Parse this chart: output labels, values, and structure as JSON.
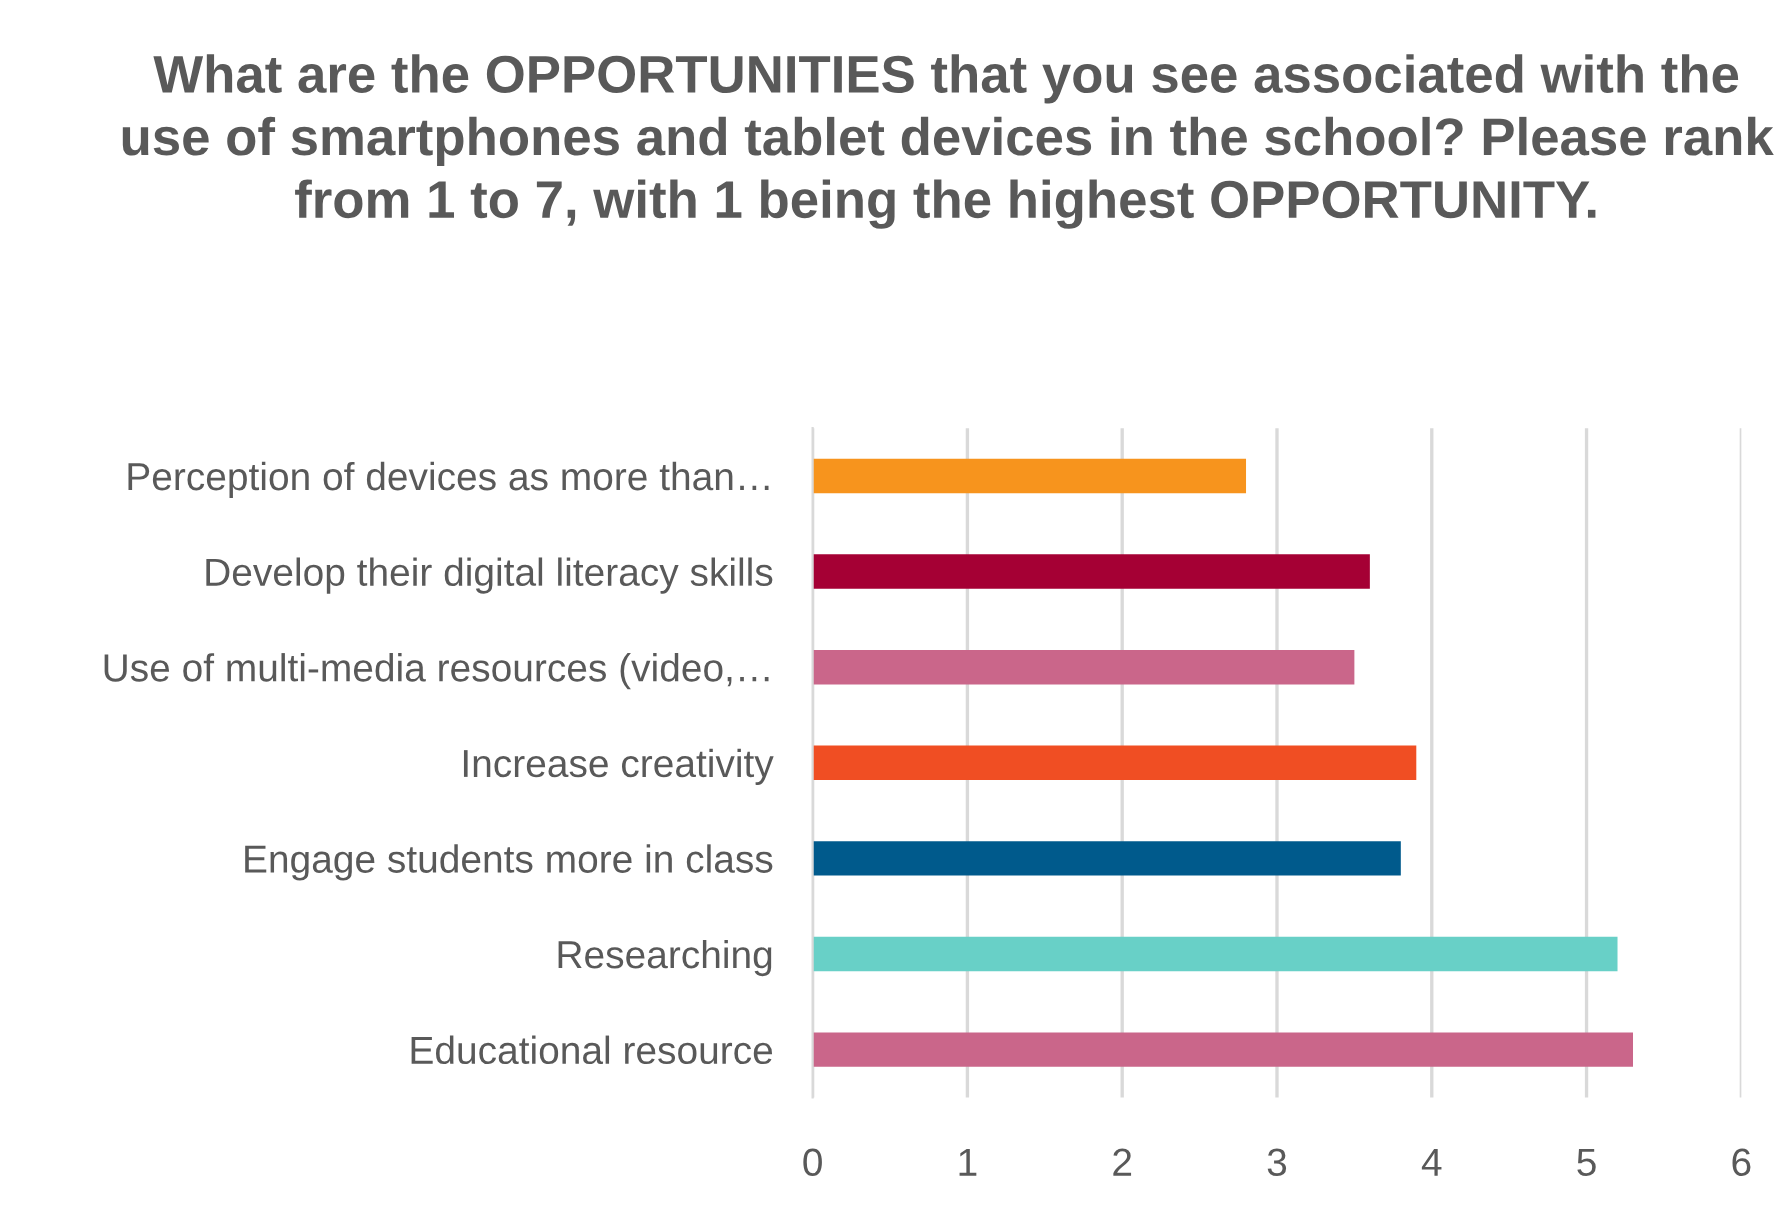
{
  "chart_data": {
    "type": "bar",
    "orientation": "horizontal",
    "title": "What are the OPPORTUNITIES that you see associated with the use of smartphones and tablet devices in the school? Please rank from 1 to 7, with 1 being the highest OPPORTUNITY.",
    "categories": [
      "Perception of devices as more than…",
      "Develop their digital literacy skills",
      "Use of multi-media resources (video,…",
      "Increase creativity",
      "Engage students more in class",
      "Researching",
      "Educational resource"
    ],
    "values": [
      2.8,
      3.6,
      3.5,
      3.9,
      3.8,
      5.2,
      5.3
    ],
    "colors": [
      "#f7941d",
      "#a50034",
      "#ca668a",
      "#f04e23",
      "#005a8c",
      "#68d0c7",
      "#ca668a"
    ],
    "xlim": [
      0,
      6
    ],
    "xticks": [
      0,
      1,
      2,
      3,
      4,
      5,
      6
    ],
    "grid": "x"
  }
}
